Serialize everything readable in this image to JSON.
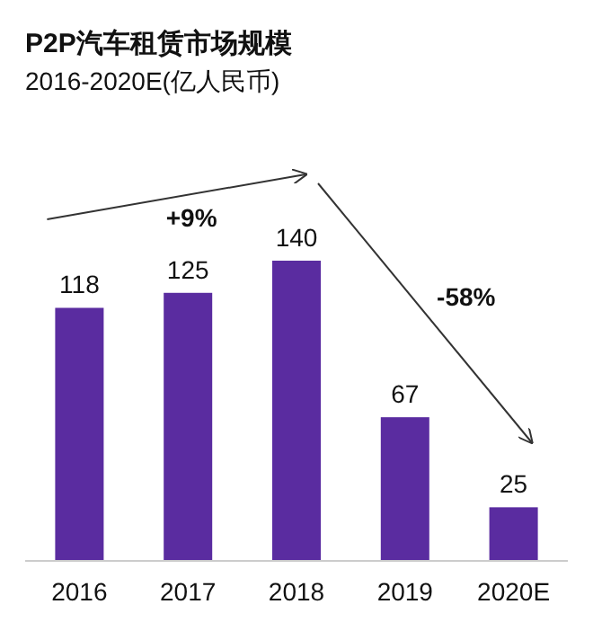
{
  "chart_data": {
    "type": "bar",
    "title": "P2P汽车租赁市场规模",
    "subtitle": "2016-2020E(亿人民币)",
    "categories": [
      "2016",
      "2017",
      "2018",
      "2019",
      "2020E"
    ],
    "values": [
      118,
      125,
      140,
      67,
      25
    ],
    "color": "#5a2ca0",
    "data_labels": true,
    "annotations": [
      "+9%",
      "-58%"
    ]
  }
}
